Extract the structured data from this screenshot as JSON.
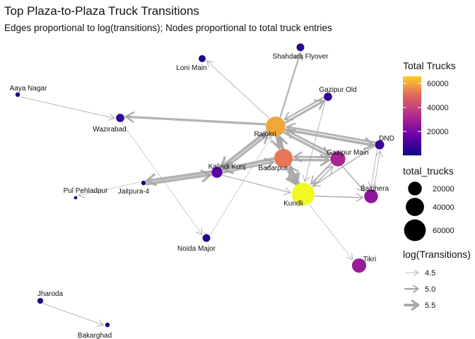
{
  "title": "Top Plaza-to-Plaza Truck Transitions",
  "subtitle": "Edges proportional to log(transitions); Nodes proportional to total truck entries",
  "colors": {
    "low": "#0d0887",
    "mid": "#cc4778",
    "high": "#f0f921",
    "edge": "#a6a6a6"
  },
  "nodes": [
    {
      "id": "loni",
      "label": "Loni Main",
      "total": 3000
    },
    {
      "id": "shahdara",
      "label": "Shahdara Flyover",
      "total": 4000
    },
    {
      "id": "aaya",
      "label": "Aaya Nagar",
      "total": 500
    },
    {
      "id": "gazold",
      "label": "Gazipur Old",
      "total": 5000
    },
    {
      "id": "wazirabad",
      "label": "Wazirabad",
      "total": 5000
    },
    {
      "id": "rajokri",
      "label": "Rajokri",
      "total": 48000
    },
    {
      "id": "dnd",
      "label": "DND",
      "total": 7000
    },
    {
      "id": "gazmain",
      "label": "Gazipur Main",
      "total": 25000
    },
    {
      "id": "badarpur",
      "label": "Badarpur",
      "total": 42000
    },
    {
      "id": "kalindi",
      "label": "Kalindi Kunj",
      "total": 11000
    },
    {
      "id": "jaitpura",
      "label": "Jaitpura-4",
      "total": 500
    },
    {
      "id": "pulpeh",
      "label": "Pul Pehladpur",
      "total": 50
    },
    {
      "id": "kundli",
      "label": "Kundli",
      "total": 66000
    },
    {
      "id": "bajghera",
      "label": "Bajghera",
      "total": 20000
    },
    {
      "id": "noida",
      "label": "Noida Major",
      "total": 4000
    },
    {
      "id": "tikri",
      "label": "Tikri",
      "total": 22000
    },
    {
      "id": "jharoda",
      "label": "Jharoda",
      "total": 1500
    },
    {
      "id": "bakarghad",
      "label": "Bakarghad",
      "total": 500
    }
  ],
  "edges": [
    {
      "from": "rajokri",
      "to": "kundli",
      "log": 5.6
    },
    {
      "from": "rajokri",
      "to": "badarpur",
      "log": 5.5
    },
    {
      "from": "badarpur",
      "to": "rajokri",
      "log": 5.4
    },
    {
      "from": "rajokri",
      "to": "dnd",
      "log": 5.5
    },
    {
      "from": "dnd",
      "to": "rajokri",
      "log": 5.2
    },
    {
      "from": "rajokri",
      "to": "gazmain",
      "log": 5.4
    },
    {
      "from": "gazmain",
      "to": "rajokri",
      "log": 5.2
    },
    {
      "from": "rajokri",
      "to": "wazirabad",
      "log": 5.3
    },
    {
      "from": "rajokri",
      "to": "kalindi",
      "log": 5.6
    },
    {
      "from": "kalindi",
      "to": "rajokri",
      "log": 5.3
    },
    {
      "from": "rajokri",
      "to": "gazold",
      "log": 5.3
    },
    {
      "from": "gazold",
      "to": "rajokri",
      "log": 5.0
    },
    {
      "from": "rajokri",
      "to": "shahdara",
      "log": 5.0
    },
    {
      "from": "rajokri",
      "to": "loni",
      "log": 4.6
    },
    {
      "from": "badarpur",
      "to": "kundli",
      "log": 5.6
    },
    {
      "from": "kundli",
      "to": "badarpur",
      "log": 5.3
    },
    {
      "from": "badarpur",
      "to": "gazmain",
      "log": 5.4
    },
    {
      "from": "gazmain",
      "to": "badarpur",
      "log": 5.2
    },
    {
      "from": "badarpur",
      "to": "kalindi",
      "log": 5.6
    },
    {
      "from": "kalindi",
      "to": "badarpur",
      "log": 5.3
    },
    {
      "from": "jaitpura",
      "to": "kalindi",
      "log": 5.5
    },
    {
      "from": "kalindi",
      "to": "jaitpura",
      "log": 5.5
    },
    {
      "from": "kalindi",
      "to": "kundli",
      "log": 4.7
    },
    {
      "from": "aaya",
      "to": "wazirabad",
      "log": 4.6
    },
    {
      "from": "wazirabad",
      "to": "noida",
      "log": 4.4
    },
    {
      "from": "jaitpura",
      "to": "pulpeh",
      "log": 4.5
    },
    {
      "from": "gazmain",
      "to": "kundli",
      "log": 5.0
    },
    {
      "from": "kundli",
      "to": "gazmain",
      "log": 4.8
    },
    {
      "from": "gazmain",
      "to": "bajghera",
      "log": 4.8
    },
    {
      "from": "dnd",
      "to": "kundli",
      "log": 4.8
    },
    {
      "from": "dnd",
      "to": "bajghera",
      "log": 4.6
    },
    {
      "from": "gazold",
      "to": "kundli",
      "log": 4.6
    },
    {
      "from": "kundli",
      "to": "bajghera",
      "log": 4.8
    },
    {
      "from": "kundli",
      "to": "tikri",
      "log": 4.5
    },
    {
      "from": "noida",
      "to": "rajokri",
      "log": 4.5
    },
    {
      "from": "jharoda",
      "to": "bakarghad",
      "log": 4.6
    },
    {
      "from": "bajghera",
      "to": "dnd",
      "log": 4.6
    }
  ],
  "legend": {
    "color_title": "Total Trucks",
    "color_ticks": [
      20000,
      40000,
      60000
    ],
    "color_range": [
      0,
      66000
    ],
    "size_title": "total_trucks",
    "size_entries": [
      20000,
      40000,
      60000
    ],
    "edge_title": "log(Transitions)",
    "edge_entries": [
      4.5,
      5.0,
      5.5
    ]
  }
}
